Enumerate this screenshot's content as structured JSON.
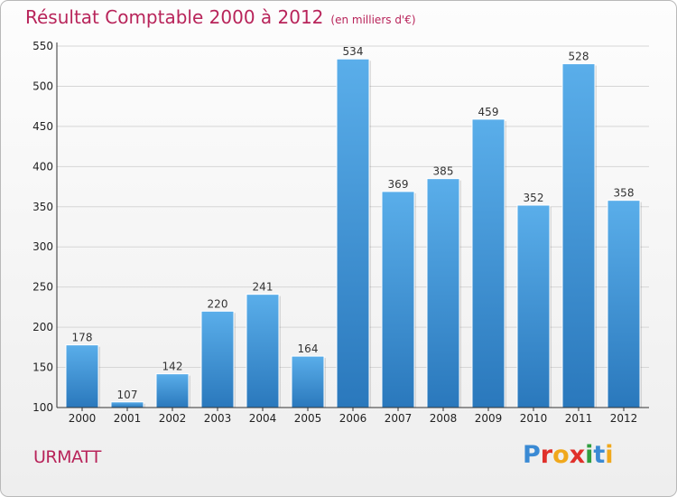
{
  "title": "Résultat Comptable 2000 à 2012",
  "subtitle": "(en milliers d'€)",
  "commune": "URMATT",
  "brand": {
    "letters": [
      {
        "ch": "P",
        "color": "#3a8ad4"
      },
      {
        "ch": "r",
        "color": "#e0302a"
      },
      {
        "ch": "o",
        "color": "#f0a81c"
      },
      {
        "ch": "x",
        "color": "#e0302a"
      },
      {
        "ch": "i",
        "color": "#2f9e3e"
      },
      {
        "ch": "t",
        "color": "#3a8ad4"
      },
      {
        "ch": "i",
        "color": "#f0a81c"
      }
    ]
  },
  "chart_data": {
    "type": "bar",
    "categories": [
      "2000",
      "2001",
      "2002",
      "2003",
      "2004",
      "2005",
      "2006",
      "2007",
      "2008",
      "2009",
      "2010",
      "2011",
      "2012"
    ],
    "values": [
      178,
      107,
      142,
      220,
      241,
      164,
      534,
      369,
      385,
      459,
      352,
      528,
      358
    ],
    "ylim": [
      100,
      550
    ],
    "yticks": [
      100,
      150,
      200,
      250,
      300,
      350,
      400,
      450,
      500,
      550
    ],
    "grid": true,
    "bar_color_top": "#5aaeea",
    "bar_color_bottom": "#2a78bc"
  }
}
